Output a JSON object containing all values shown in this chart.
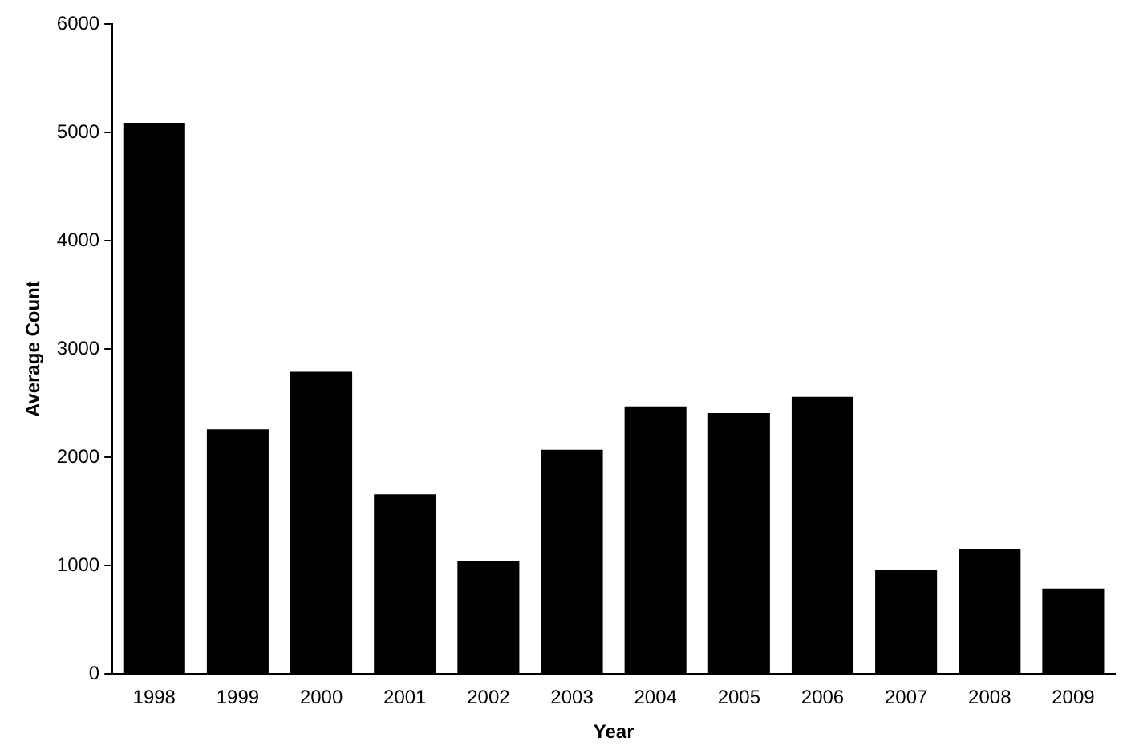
{
  "chart_data": {
    "type": "bar",
    "xlabel": "Year",
    "ylabel": "Average Count",
    "categories": [
      "1998",
      "1999",
      "2000",
      "2001",
      "2002",
      "2003",
      "2004",
      "2005",
      "2006",
      "2007",
      "2008",
      "2009"
    ],
    "values": [
      5090,
      2260,
      2790,
      1660,
      1040,
      2070,
      2470,
      2410,
      2560,
      960,
      1150,
      790
    ],
    "color": "#000000",
    "ylim": [
      0,
      6000
    ],
    "yticks": [
      0,
      1000,
      2000,
      3000,
      4000,
      5000,
      6000
    ],
    "grid": false,
    "legend": false
  }
}
